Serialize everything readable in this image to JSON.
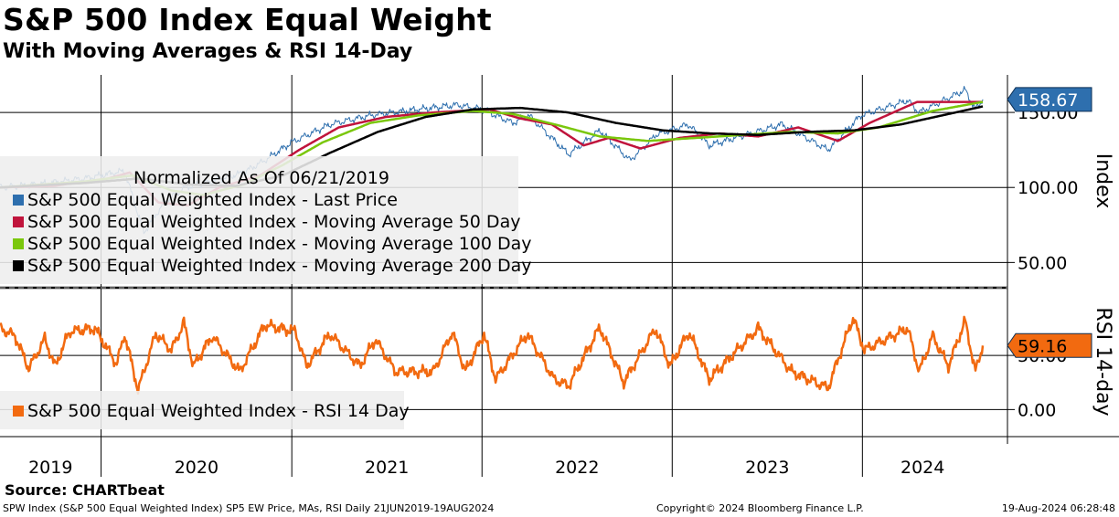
{
  "title": "S&P 500 Index Equal Weight",
  "subtitle": "With Moving Averages & RSI 14-Day",
  "source": "Source: CHARTbeat",
  "footer": {
    "description": "SPW Index (S&P 500 Equal Weighted Index) SP5 EW Price, MAs, RSI  Daily 21JUN2019-19AUG2024",
    "copyright": "Copyright© 2024 Bloomberg Finance L.P.",
    "timestamp": "19-Aug-2024 06:28:48"
  },
  "colors": {
    "last_price": "#2e6fae",
    "ma50": "#c0143c",
    "ma100": "#7ac70c",
    "ma200": "#000000",
    "rsi": "#f26a10",
    "price_badge": "#2e6fae",
    "rsi_badge": "#f26a10"
  },
  "chart_data": [
    {
      "type": "line",
      "panel": "price",
      "ylabel": "Index",
      "y_ticks": [
        50,
        100,
        150
      ],
      "y_tick_labels": [
        "50.00",
        "100.00",
        "150.00"
      ],
      "ylim": [
        35,
        175
      ],
      "last_value_label": "158.67",
      "legend_note": "Normalized As Of 06/21/2019",
      "legend_position": "left",
      "x_time_labels": [
        "2019",
        "2020",
        "2021",
        "2022",
        "2023",
        "2024"
      ],
      "x_range": [
        "2019-06-21",
        "2024-08-19"
      ],
      "series": [
        {
          "name": "S&P 500 Equal Weighted Index - Last Price",
          "color": "#2e6fae",
          "points": [
            [
              "2019-06-21",
              100
            ],
            [
              "2019-09-01",
              102
            ],
            [
              "2019-12-01",
              106
            ],
            [
              "2020-02-15",
              111
            ],
            [
              "2020-03-23",
              70
            ],
            [
              "2020-05-01",
              90
            ],
            [
              "2020-06-10",
              100
            ],
            [
              "2020-08-01",
              104
            ],
            [
              "2020-10-01",
              110
            ],
            [
              "2020-11-10",
              118
            ],
            [
              "2021-01-01",
              130
            ],
            [
              "2021-03-15",
              142
            ],
            [
              "2021-06-01",
              148
            ],
            [
              "2021-09-01",
              152
            ],
            [
              "2021-11-15",
              155
            ],
            [
              "2022-01-01",
              152
            ],
            [
              "2022-03-01",
              143
            ],
            [
              "2022-04-01",
              148
            ],
            [
              "2022-06-16",
              122
            ],
            [
              "2022-08-15",
              138
            ],
            [
              "2022-10-12",
              118
            ],
            [
              "2022-12-01",
              135
            ],
            [
              "2023-02-01",
              142
            ],
            [
              "2023-03-13",
              128
            ],
            [
              "2023-07-31",
              142
            ],
            [
              "2023-10-27",
              125
            ],
            [
              "2023-12-29",
              148
            ],
            [
              "2024-03-28",
              158
            ],
            [
              "2024-04-19",
              150
            ],
            [
              "2024-07-16",
              165
            ],
            [
              "2024-08-05",
              152
            ],
            [
              "2024-08-19",
              158.67
            ]
          ]
        },
        {
          "name": "S&P 500 Equal Weighted Index - Moving Average 50 Day",
          "color": "#c0143c",
          "points": [
            [
              "2019-06-21",
              100
            ],
            [
              "2019-10-01",
              101
            ],
            [
              "2020-01-15",
              106
            ],
            [
              "2020-02-25",
              110
            ],
            [
              "2020-04-20",
              90
            ],
            [
              "2020-06-15",
              88
            ],
            [
              "2020-08-15",
              100
            ],
            [
              "2020-11-01",
              108
            ],
            [
              "2021-01-15",
              125
            ],
            [
              "2021-04-01",
              140
            ],
            [
              "2021-07-01",
              147
            ],
            [
              "2021-10-01",
              150
            ],
            [
              "2022-01-15",
              152
            ],
            [
              "2022-03-15",
              146
            ],
            [
              "2022-05-15",
              142
            ],
            [
              "2022-07-15",
              128
            ],
            [
              "2022-09-01",
              133
            ],
            [
              "2022-11-01",
              126
            ],
            [
              "2023-01-15",
              133
            ],
            [
              "2023-04-01",
              136
            ],
            [
              "2023-06-15",
              134
            ],
            [
              "2023-08-31",
              140
            ],
            [
              "2023-11-15",
              131
            ],
            [
              "2024-01-15",
              143
            ],
            [
              "2024-04-15",
              157
            ],
            [
              "2024-08-19",
              157
            ]
          ]
        },
        {
          "name": "S&P 500 Equal Weighted Index - Moving Average 100 Day",
          "color": "#7ac70c",
          "points": [
            [
              "2019-06-21",
              100
            ],
            [
              "2019-12-01",
              104
            ],
            [
              "2020-03-01",
              108
            ],
            [
              "2020-05-15",
              98
            ],
            [
              "2020-07-15",
              95
            ],
            [
              "2020-10-01",
              102
            ],
            [
              "2020-12-15",
              115
            ],
            [
              "2021-03-01",
              130
            ],
            [
              "2021-06-01",
              143
            ],
            [
              "2021-09-01",
              148
            ],
            [
              "2021-12-15",
              151
            ],
            [
              "2022-03-01",
              149
            ],
            [
              "2022-06-01",
              141
            ],
            [
              "2022-08-15",
              134
            ],
            [
              "2022-11-15",
              131
            ],
            [
              "2023-02-15",
              133
            ],
            [
              "2023-05-15",
              135
            ],
            [
              "2023-08-15",
              137
            ],
            [
              "2023-11-15",
              136
            ],
            [
              "2024-02-01",
              140
            ],
            [
              "2024-05-15",
              151
            ],
            [
              "2024-08-19",
              157
            ]
          ]
        },
        {
          "name": "S&P 500 Equal Weighted Index - Moving Average 200 Day",
          "color": "#000000",
          "points": [
            [
              "2019-06-21",
              100
            ],
            [
              "2019-12-01",
              103
            ],
            [
              "2020-03-15",
              106
            ],
            [
              "2020-06-15",
              102
            ],
            [
              "2020-09-15",
              101
            ],
            [
              "2020-12-15",
              108
            ],
            [
              "2021-03-15",
              123
            ],
            [
              "2021-06-15",
              137
            ],
            [
              "2021-09-15",
              147
            ],
            [
              "2021-12-15",
              152
            ],
            [
              "2022-03-15",
              153
            ],
            [
              "2022-06-15",
              150
            ],
            [
              "2022-09-15",
              143
            ],
            [
              "2022-12-15",
              138
            ],
            [
              "2023-03-15",
              136
            ],
            [
              "2023-06-15",
              135
            ],
            [
              "2023-09-15",
              137
            ],
            [
              "2023-12-15",
              138
            ],
            [
              "2024-03-15",
              142
            ],
            [
              "2024-06-15",
              149
            ],
            [
              "2024-08-19",
              154
            ]
          ]
        }
      ]
    },
    {
      "type": "line",
      "panel": "rsi",
      "ylabel": "RSI 14-day",
      "y_ticks": [
        0,
        50
      ],
      "y_tick_labels": [
        "0.00",
        "50.00"
      ],
      "ylim": [
        -25,
        110
      ],
      "last_value_label": "59.16",
      "legend_position": "bottom-left",
      "series": [
        {
          "name": "S&P 500 Equal Weighted Index - RSI 14 Day",
          "color": "#f26a10",
          "points": [
            [
              "2019-06-21",
              75
            ],
            [
              "2019-07-20",
              68
            ],
            [
              "2019-08-15",
              38
            ],
            [
              "2019-09-15",
              65
            ],
            [
              "2019-10-05",
              40
            ],
            [
              "2019-11-01",
              72
            ],
            [
              "2019-12-20",
              75
            ],
            [
              "2020-01-31",
              42
            ],
            [
              "2020-02-15",
              70
            ],
            [
              "2020-03-12",
              18
            ],
            [
              "2020-04-15",
              70
            ],
            [
              "2020-05-15",
              55
            ],
            [
              "2020-06-08",
              80
            ],
            [
              "2020-06-26",
              40
            ],
            [
              "2020-08-01",
              68
            ],
            [
              "2020-09-23",
              35
            ],
            [
              "2020-11-10",
              78
            ],
            [
              "2021-01-08",
              72
            ],
            [
              "2021-01-29",
              40
            ],
            [
              "2021-03-15",
              70
            ],
            [
              "2021-05-12",
              40
            ],
            [
              "2021-06-10",
              65
            ],
            [
              "2021-07-19",
              35
            ],
            [
              "2021-09-30",
              35
            ],
            [
              "2021-11-05",
              72
            ],
            [
              "2021-11-30",
              35
            ],
            [
              "2022-01-05",
              70
            ],
            [
              "2022-01-27",
              28
            ],
            [
              "2022-03-29",
              70
            ],
            [
              "2022-05-19",
              28
            ],
            [
              "2022-06-16",
              22
            ],
            [
              "2022-08-15",
              76
            ],
            [
              "2022-09-30",
              25
            ],
            [
              "2022-11-30",
              75
            ],
            [
              "2022-12-28",
              40
            ],
            [
              "2023-02-02",
              72
            ],
            [
              "2023-03-13",
              28
            ],
            [
              "2023-06-15",
              75
            ],
            [
              "2023-08-18",
              35
            ],
            [
              "2023-10-27",
              20
            ],
            [
              "2023-12-14",
              85
            ],
            [
              "2024-01-05",
              55
            ],
            [
              "2024-03-28",
              75
            ],
            [
              "2024-04-19",
              35
            ],
            [
              "2024-05-15",
              68
            ],
            [
              "2024-06-14",
              40
            ],
            [
              "2024-07-16",
              82
            ],
            [
              "2024-08-05",
              35
            ],
            [
              "2024-08-19",
              59.16
            ]
          ]
        }
      ]
    }
  ]
}
